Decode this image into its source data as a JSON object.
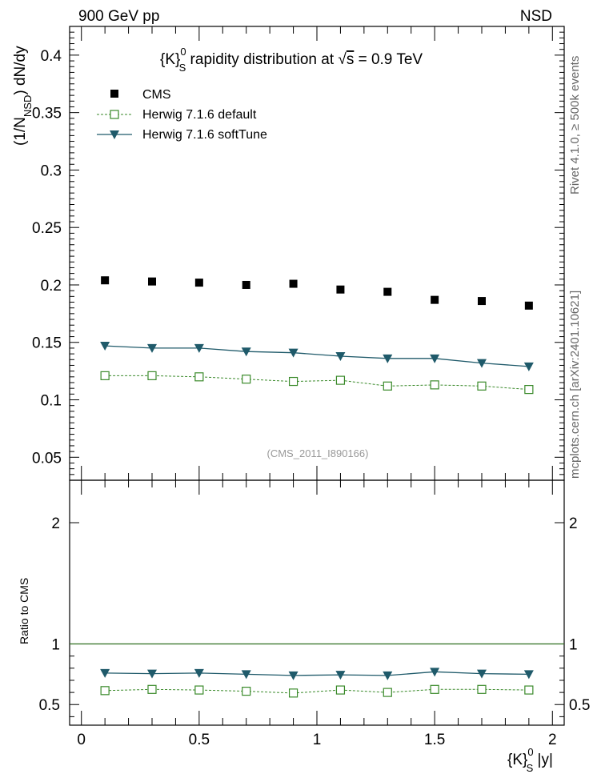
{
  "header": {
    "left": "900 GeV pp",
    "right": "NSD"
  },
  "side_labels": {
    "top": "Rivet 4.1.0, ≥ 500k events",
    "bottom": "mcplots.cern.ch [arXiv:2401.10621]"
  },
  "watermark": "(CMS_2011_I890166)",
  "colors": {
    "cms": "#000000",
    "default": "#3a8a2a",
    "softtune": "#1f5a6a",
    "ref_line": "#2e6e1e",
    "watermark": "#999999",
    "side": "#666666"
  },
  "chart_data": [
    {
      "type": "scatter",
      "panel": "main",
      "title": "{K}S0 rapidity distribution at √s = 0.9 TeV",
      "title_parts": {
        "k": "{K}",
        "sup": "0",
        "sub": "S",
        "text": " rapidity distribution at ",
        "sqrt_sym": "√",
        "sqrt_arg": "s",
        "value": " = 0.9 TeV"
      },
      "ylabel_parts": {
        "a": "(1/N",
        "sub": "NSD",
        "b": ") dN/dy"
      },
      "xlim": [
        -0.05,
        2.05
      ],
      "ylim": [
        0.03,
        0.425
      ],
      "yticks": [
        0.05,
        0.1,
        0.15,
        0.2,
        0.25,
        0.3,
        0.35,
        0.4
      ],
      "ytick_labels": [
        "0.05",
        "0.1",
        "0.15",
        "0.2",
        "0.25",
        "0.3",
        "0.35",
        "0.4"
      ],
      "x": [
        0.1,
        0.3,
        0.5,
        0.7,
        0.9,
        1.1,
        1.3,
        1.5,
        1.7,
        1.9
      ],
      "legend_position": "top-left",
      "series": [
        {
          "name": "CMS",
          "marker": "filled-square",
          "line": "none",
          "values": [
            0.204,
            0.203,
            0.202,
            0.2,
            0.201,
            0.196,
            0.194,
            0.187,
            0.186,
            0.182
          ]
        },
        {
          "name": "Herwig 7.1.6 default",
          "marker": "open-square",
          "line": "dashed",
          "values": [
            0.121,
            0.121,
            0.12,
            0.118,
            0.116,
            0.117,
            0.112,
            0.113,
            0.112,
            0.109
          ]
        },
        {
          "name": "Herwig 7.1.6 softTune",
          "marker": "filled-triangle-down",
          "line": "solid",
          "values": [
            0.147,
            0.145,
            0.145,
            0.142,
            0.141,
            0.138,
            0.136,
            0.136,
            0.132,
            0.129
          ]
        }
      ]
    },
    {
      "type": "scatter",
      "panel": "ratio",
      "ylabel": "Ratio to CMS",
      "xlabel_parts": {
        "k": "{K}",
        "sup": "0",
        "sub": "S",
        "rest": " |y|"
      },
      "xlim": [
        -0.05,
        2.05
      ],
      "ylim": [
        0.33,
        2.35
      ],
      "xticks": [
        0,
        0.5,
        1,
        1.5,
        2
      ],
      "xtick_labels": [
        "0",
        "0.5",
        "1",
        "1.5",
        "2"
      ],
      "yticks": [
        0.5,
        1,
        2
      ],
      "ytick_labels": [
        "0.5",
        "1",
        "2"
      ],
      "reference": 1,
      "x": [
        0.1,
        0.3,
        0.5,
        0.7,
        0.9,
        1.1,
        1.3,
        1.5,
        1.7,
        1.9
      ],
      "series": [
        {
          "name": "Herwig 7.1.6 default",
          "marker": "open-square",
          "line": "dashed",
          "values": [
            0.615,
            0.625,
            0.62,
            0.61,
            0.595,
            0.62,
            0.6,
            0.625,
            0.625,
            0.62
          ]
        },
        {
          "name": "Herwig 7.1.6 softTune",
          "marker": "filled-triangle-down",
          "line": "solid",
          "values": [
            0.76,
            0.755,
            0.76,
            0.75,
            0.74,
            0.745,
            0.74,
            0.77,
            0.755,
            0.75
          ]
        }
      ]
    }
  ]
}
